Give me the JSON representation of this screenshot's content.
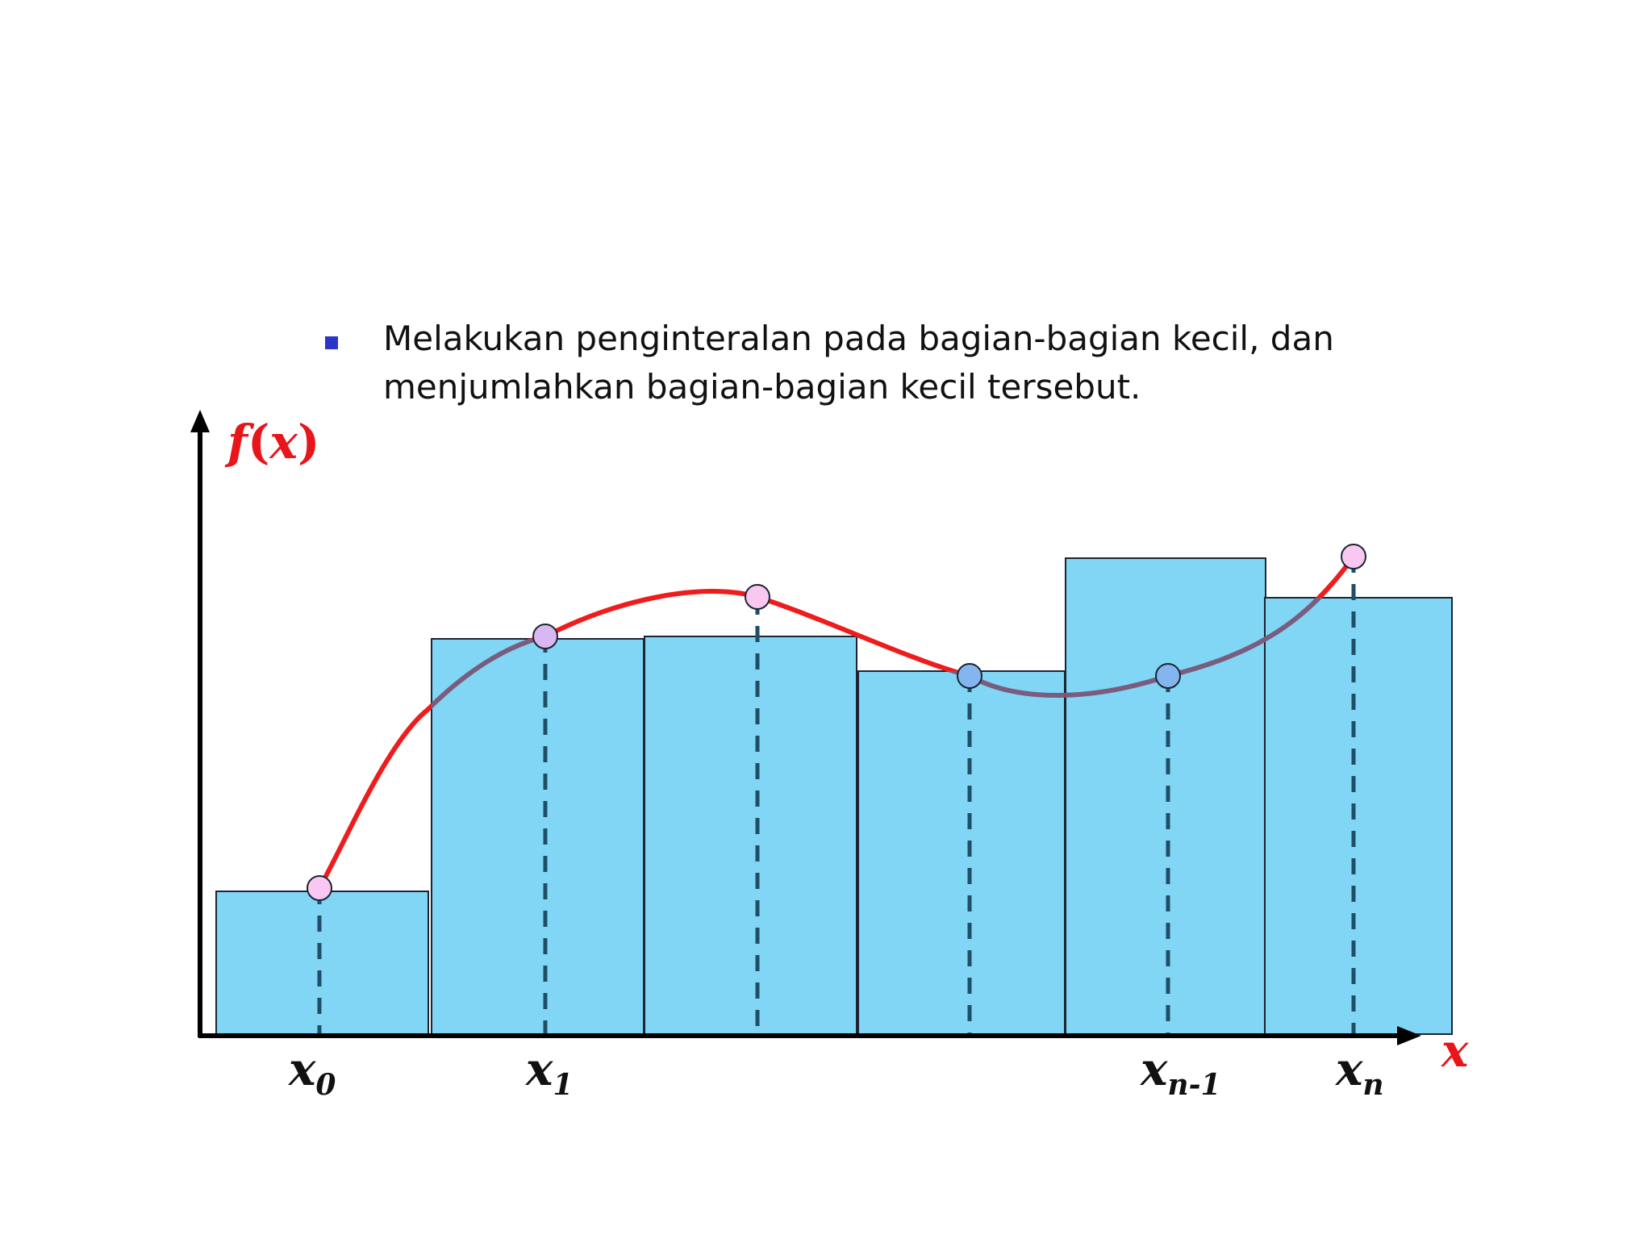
{
  "bullet": {
    "line1": "Melakukan penginteralan pada bagian-bagian kecil, dan",
    "line2": "menjumlahkan bagian-bagian kecil tersebut."
  },
  "diagram": {
    "y_axis_label": {
      "prefix": "f",
      "paren_open": "(",
      "var": "x",
      "paren_close": ")"
    },
    "x_axis_label": "x",
    "ticks": [
      {
        "base": "x",
        "sub": "0"
      },
      {
        "base": "x",
        "sub": "1"
      },
      {
        "base": "x",
        "sub": "n-1"
      },
      {
        "base": "x",
        "sub": "n"
      }
    ],
    "colors": {
      "bar_fill": "#80d6f4",
      "bar_stroke": "#1d2430",
      "curve": "#ee1c1c",
      "curve_inside": "#7a5c7e",
      "point_outside": "#f8c8f3",
      "point_inside": "#83b6ef",
      "dashed": "#1f4e66",
      "axis": "#000000"
    }
  }
}
